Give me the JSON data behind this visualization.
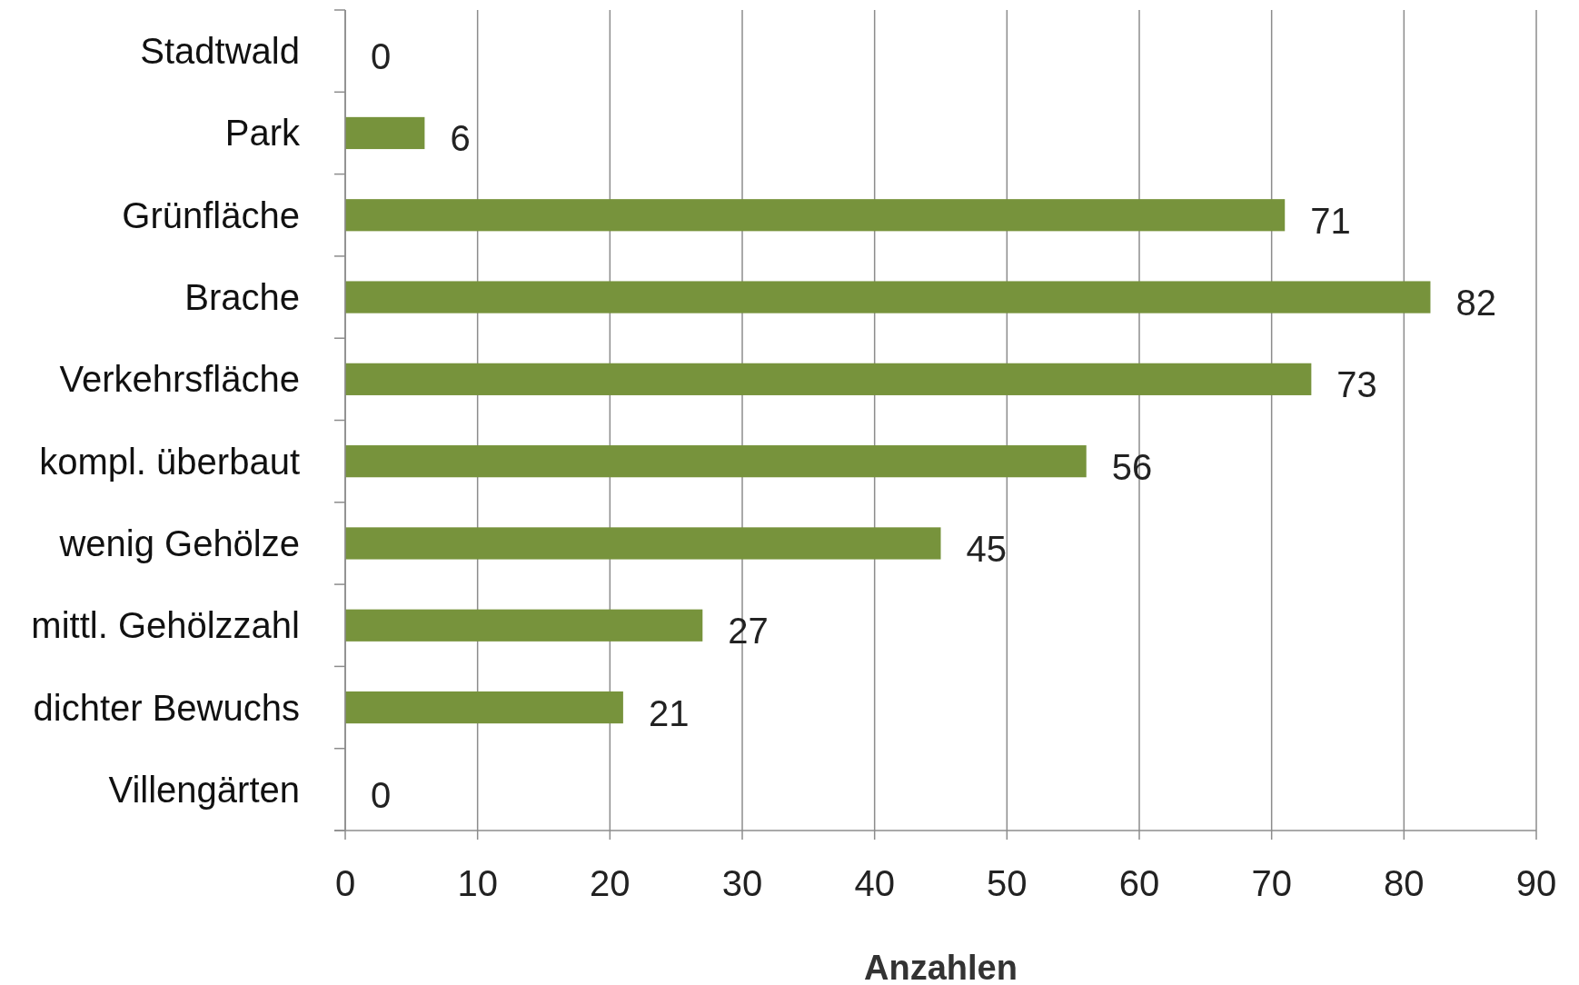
{
  "chart_data": {
    "type": "bar",
    "orientation": "horizontal",
    "xlabel": "Anzahlen",
    "categories": [
      "Stadtwald",
      "Park",
      "Grünfläche",
      "Brache",
      "Verkehrsfläche",
      "kompl. überbaut",
      "wenig Gehölze",
      "mittl. Gehölzzahl",
      "dichter Bewuchs",
      "Villengärten"
    ],
    "values": [
      0,
      6,
      71,
      82,
      73,
      56,
      45,
      27,
      21,
      0
    ],
    "color": "#77933c",
    "xlim": [
      0,
      90
    ],
    "xticks": [
      0,
      10,
      20,
      30,
      40,
      50,
      60,
      70,
      80,
      90
    ],
    "grid": "x",
    "data_labels": true
  }
}
